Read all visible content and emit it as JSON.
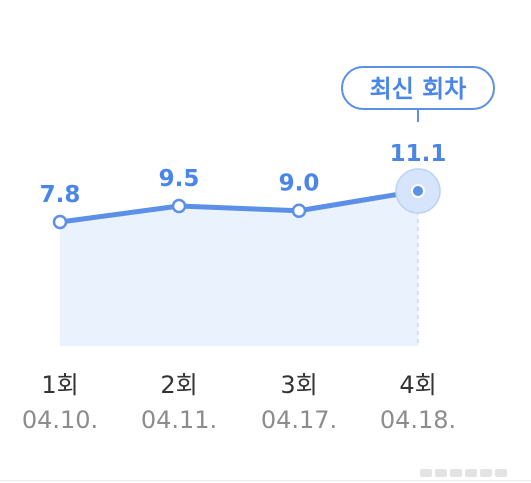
{
  "chart_data": {
    "type": "area",
    "categories": [
      "1회",
      "2회",
      "3회",
      "4회"
    ],
    "dates": [
      "04.10.",
      "04.11.",
      "04.17.",
      "04.18."
    ],
    "values": [
      7.8,
      9.5,
      9.0,
      11.1
    ],
    "value_labels": [
      "7.8",
      "9.5",
      "9.0",
      "11.1"
    ],
    "highlight_index": 3,
    "highlight_label": "최신 회차",
    "ylim": [
      0,
      13
    ],
    "grid": false,
    "legend": "none",
    "colors": {
      "line": "#5b8fe8",
      "fill": "#eaf2fd",
      "value_text": "#4a86e8",
      "highlight_halo": "#d6e5fb",
      "category_text": "#333333",
      "date_text": "#8c8c8c"
    }
  }
}
